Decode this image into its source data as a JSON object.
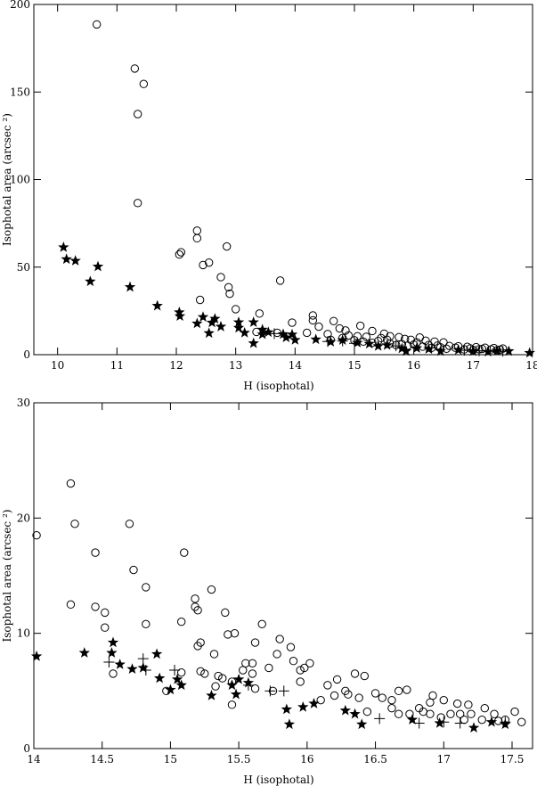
{
  "chart_data": [
    {
      "type": "scatter",
      "title": "",
      "xlabel": "H (isophotal)",
      "ylabel": "Isophotal area (arcsec ²)",
      "xlim": [
        9.6,
        18.0
      ],
      "ylim": [
        0,
        200
      ],
      "xticks": [
        10,
        11,
        12,
        13,
        14,
        15,
        16,
        17,
        18
      ],
      "yticks": [
        0,
        50,
        100,
        150,
        200
      ],
      "grid": false,
      "series": [
        {
          "marker": "circle",
          "points": [
            [
              10.66,
              188.6
            ],
            [
              11.3,
              163.4
            ],
            [
              11.45,
              154.6
            ],
            [
              11.35,
              137.4
            ],
            [
              11.35,
              86.6
            ],
            [
              12.35,
              70.8
            ],
            [
              12.35,
              66.5
            ],
            [
              12.85,
              61.8
            ],
            [
              12.05,
              57.2
            ],
            [
              12.08,
              58.5
            ],
            [
              12.55,
              52.6
            ],
            [
              12.45,
              51.2
            ],
            [
              12.75,
              44.3
            ],
            [
              13.75,
              42.3
            ],
            [
              12.88,
              38.5
            ],
            [
              12.9,
              34.8
            ],
            [
              12.4,
              31.3
            ],
            [
              13.0,
              26.0
            ],
            [
              13.4,
              23.5
            ],
            [
              14.3,
              22.4
            ],
            [
              14.3,
              19.6
            ],
            [
              14.65,
              19.2
            ],
            [
              13.95,
              18.3
            ],
            [
              15.1,
              16.5
            ],
            [
              14.4,
              16.0
            ],
            [
              14.75,
              15.0
            ],
            [
              14.85,
              13.8
            ],
            [
              15.3,
              13.5
            ],
            [
              13.35,
              13.0
            ],
            [
              13.7,
              12.5
            ],
            [
              14.2,
              12.5
            ],
            [
              14.55,
              11.8
            ],
            [
              15.5,
              12.0
            ],
            [
              14.9,
              11.0
            ],
            [
              15.05,
              10.5
            ],
            [
              15.2,
              10.2
            ],
            [
              15.6,
              10.5
            ],
            [
              15.75,
              10.0
            ],
            [
              15.45,
              9.5
            ],
            [
              16.1,
              9.8
            ],
            [
              15.85,
              9.0
            ],
            [
              15.95,
              8.5
            ],
            [
              16.2,
              8.0
            ],
            [
              16.35,
              7.5
            ],
            [
              16.5,
              7.0
            ],
            [
              16.05,
              7.0
            ],
            [
              15.15,
              7.5
            ],
            [
              15.3,
              6.8
            ],
            [
              15.6,
              6.3
            ],
            [
              15.8,
              6.0
            ],
            [
              16.0,
              5.8
            ],
            [
              16.25,
              5.5
            ],
            [
              16.4,
              5.2
            ],
            [
              16.6,
              5.0
            ],
            [
              16.75,
              4.8
            ],
            [
              16.9,
              4.5
            ],
            [
              17.05,
              4.3
            ],
            [
              17.2,
              4.0
            ],
            [
              17.35,
              3.8
            ],
            [
              17.5,
              3.5
            ],
            [
              16.15,
              4.6
            ],
            [
              16.45,
              4.2
            ],
            [
              16.7,
              4.0
            ],
            [
              16.95,
              3.6
            ],
            [
              17.15,
              3.3
            ],
            [
              17.3,
              3.0
            ],
            [
              17.45,
              2.8
            ],
            [
              16.55,
              3.4
            ],
            [
              16.85,
              3.0
            ],
            [
              17.0,
              2.7
            ],
            [
              15.9,
              5.2
            ],
            [
              15.7,
              5.5
            ],
            [
              16.3,
              3.9
            ],
            [
              17.1,
              3.1
            ],
            [
              17.4,
              2.5
            ],
            [
              14.6,
              8.5
            ],
            [
              14.8,
              9.5
            ],
            [
              15.0,
              8.2
            ],
            [
              15.4,
              7.8
            ],
            [
              15.55,
              8.5
            ]
          ]
        },
        {
          "marker": "star",
          "points": [
            [
              10.1,
              61.3
            ],
            [
              10.15,
              54.5
            ],
            [
              10.3,
              53.6
            ],
            [
              10.68,
              50.3
            ],
            [
              10.55,
              41.8
            ],
            [
              11.22,
              38.6
            ],
            [
              11.68,
              27.9
            ],
            [
              12.05,
              24.2
            ],
            [
              12.06,
              22.0
            ],
            [
              12.45,
              21.5
            ],
            [
              12.65,
              20.5
            ],
            [
              12.35,
              17.8
            ],
            [
              12.6,
              18.3
            ],
            [
              12.75,
              16.0
            ],
            [
              13.05,
              18.5
            ],
            [
              13.3,
              18.5
            ],
            [
              13.05,
              15.3
            ],
            [
              13.45,
              14.3
            ],
            [
              13.55,
              12.8
            ],
            [
              13.15,
              12.5
            ],
            [
              12.55,
              12.3
            ],
            [
              13.45,
              11.6
            ],
            [
              13.8,
              11.7
            ],
            [
              13.95,
              11.5
            ],
            [
              13.85,
              9.8
            ],
            [
              14.0,
              8.4
            ],
            [
              13.3,
              6.5
            ],
            [
              14.35,
              8.7
            ],
            [
              14.6,
              7.3
            ],
            [
              14.8,
              8.3
            ],
            [
              15.05,
              6.8
            ],
            [
              15.25,
              6.2
            ],
            [
              15.4,
              4.9
            ],
            [
              15.55,
              5.4
            ],
            [
              15.8,
              3.5
            ],
            [
              15.87,
              2.0
            ],
            [
              16.05,
              3.7
            ],
            [
              16.25,
              3.2
            ],
            [
              16.45,
              2.0
            ],
            [
              16.75,
              2.7
            ],
            [
              17.0,
              2.0
            ],
            [
              17.25,
              1.6
            ],
            [
              17.4,
              2.2
            ],
            [
              17.6,
              2.0
            ],
            [
              17.95,
              1.0
            ]
          ]
        },
        {
          "marker": "plus",
          "points": [
            [
              13.65,
              12.0
            ],
            [
              14.55,
              7.5
            ],
            [
              14.8,
              7.8
            ],
            [
              15.0,
              6.5
            ],
            [
              15.7,
              5.0
            ],
            [
              16.3,
              4.0
            ],
            [
              16.85,
              2.5
            ],
            [
              17.1,
              2.2
            ],
            [
              17.5,
              2.0
            ]
          ]
        }
      ]
    },
    {
      "type": "scatter",
      "title": "",
      "xlabel": "H (isophotal)",
      "ylabel": "Isophotal area (arcsec ²)",
      "xlim": [
        14,
        17.65
      ],
      "ylim": [
        0,
        30
      ],
      "xticks": [
        14,
        14.5,
        15,
        15.5,
        16,
        16.5,
        17,
        17.5
      ],
      "yticks": [
        0,
        10,
        20,
        30
      ],
      "grid": false,
      "series": [
        {
          "marker": "circle",
          "points": [
            [
              14.02,
              18.5
            ],
            [
              14.27,
              23.0
            ],
            [
              14.3,
              19.5
            ],
            [
              14.7,
              19.5
            ],
            [
              14.45,
              17.0
            ],
            [
              15.1,
              17.0
            ],
            [
              14.73,
              15.5
            ],
            [
              14.82,
              14.0
            ],
            [
              15.3,
              13.8
            ],
            [
              15.18,
              13.0
            ],
            [
              14.27,
              12.5
            ],
            [
              14.45,
              12.3
            ],
            [
              15.18,
              12.3
            ],
            [
              15.2,
              12.0
            ],
            [
              14.52,
              11.8
            ],
            [
              15.4,
              11.8
            ],
            [
              15.08,
              11.0
            ],
            [
              14.82,
              10.8
            ],
            [
              15.67,
              10.8
            ],
            [
              14.52,
              10.5
            ],
            [
              15.47,
              10.0
            ],
            [
              15.42,
              9.9
            ],
            [
              15.8,
              9.5
            ],
            [
              15.22,
              9.2
            ],
            [
              15.62,
              9.2
            ],
            [
              15.2,
              8.9
            ],
            [
              15.88,
              8.8
            ],
            [
              15.32,
              8.2
            ],
            [
              15.78,
              8.2
            ],
            [
              15.9,
              7.6
            ],
            [
              16.02,
              7.4
            ],
            [
              15.55,
              7.4
            ],
            [
              15.6,
              7.4
            ],
            [
              15.72,
              7.0
            ],
            [
              15.98,
              7.0
            ],
            [
              15.95,
              6.8
            ],
            [
              15.53,
              6.8
            ],
            [
              15.25,
              6.5
            ],
            [
              15.22,
              6.7
            ],
            [
              15.35,
              6.3
            ],
            [
              15.38,
              6.1
            ],
            [
              15.6,
              6.5
            ],
            [
              14.58,
              6.5
            ],
            [
              15.08,
              6.6
            ],
            [
              16.35,
              6.5
            ],
            [
              16.42,
              6.3
            ],
            [
              16.22,
              6.0
            ],
            [
              15.45,
              5.8
            ],
            [
              15.95,
              5.8
            ],
            [
              16.15,
              5.5
            ],
            [
              15.33,
              5.4
            ],
            [
              15.62,
              5.2
            ],
            [
              14.97,
              5.0
            ],
            [
              15.75,
              5.0
            ],
            [
              16.28,
              5.0
            ],
            [
              16.3,
              4.7
            ],
            [
              16.5,
              4.8
            ],
            [
              16.67,
              5.0
            ],
            [
              16.73,
              5.1
            ],
            [
              16.92,
              4.6
            ],
            [
              16.2,
              4.6
            ],
            [
              16.38,
              4.4
            ],
            [
              16.55,
              4.4
            ],
            [
              16.62,
              4.2
            ],
            [
              16.9,
              4.0
            ],
            [
              17.0,
              4.2
            ],
            [
              17.1,
              3.9
            ],
            [
              17.18,
              3.8
            ],
            [
              17.3,
              3.5
            ],
            [
              16.82,
              3.5
            ],
            [
              16.85,
              3.2
            ],
            [
              16.67,
              3.0
            ],
            [
              16.75,
              3.0
            ],
            [
              16.9,
              3.0
            ],
            [
              17.05,
              3.0
            ],
            [
              17.12,
              3.0
            ],
            [
              17.2,
              3.0
            ],
            [
              17.37,
              3.0
            ],
            [
              17.52,
              3.2
            ],
            [
              16.44,
              3.2
            ],
            [
              16.98,
              2.7
            ],
            [
              17.15,
              2.5
            ],
            [
              17.28,
              2.5
            ],
            [
              17.45,
              2.5
            ],
            [
              17.57,
              2.3
            ],
            [
              15.45,
              3.8
            ],
            [
              16.1,
              4.2
            ],
            [
              16.62,
              3.5
            ],
            [
              17.4,
              2.4
            ]
          ]
        },
        {
          "marker": "star",
          "points": [
            [
              14.02,
              8.0
            ],
            [
              14.37,
              8.3
            ],
            [
              14.58,
              9.2
            ],
            [
              14.57,
              8.3
            ],
            [
              14.9,
              8.2
            ],
            [
              14.63,
              7.3
            ],
            [
              14.72,
              6.9
            ],
            [
              14.8,
              7.0
            ],
            [
              14.92,
              6.1
            ],
            [
              15.05,
              6.0
            ],
            [
              15.08,
              5.5
            ],
            [
              15.0,
              5.1
            ],
            [
              15.3,
              4.6
            ],
            [
              15.5,
              6.0
            ],
            [
              15.57,
              5.7
            ],
            [
              15.45,
              5.5
            ],
            [
              15.48,
              4.7
            ],
            [
              16.05,
              3.9
            ],
            [
              15.97,
              3.6
            ],
            [
              15.85,
              3.4
            ],
            [
              15.87,
              2.1
            ],
            [
              16.28,
              3.3
            ],
            [
              16.35,
              3.0
            ],
            [
              16.4,
              2.1
            ],
            [
              16.77,
              2.5
            ],
            [
              16.97,
              2.2
            ],
            [
              17.22,
              1.8
            ],
            [
              17.35,
              2.3
            ],
            [
              17.45,
              2.1
            ]
          ]
        },
        {
          "marker": "plus",
          "points": [
            [
              14.55,
              7.5
            ],
            [
              14.8,
              7.8
            ],
            [
              14.82,
              6.8
            ],
            [
              15.03,
              6.8
            ],
            [
              15.57,
              5.5
            ],
            [
              15.73,
              5.0
            ],
            [
              15.83,
              5.0
            ],
            [
              16.53,
              2.6
            ],
            [
              16.82,
              2.2
            ],
            [
              17.0,
              2.3
            ],
            [
              17.12,
              2.2
            ],
            [
              17.45,
              2.3
            ]
          ]
        }
      ]
    }
  ]
}
